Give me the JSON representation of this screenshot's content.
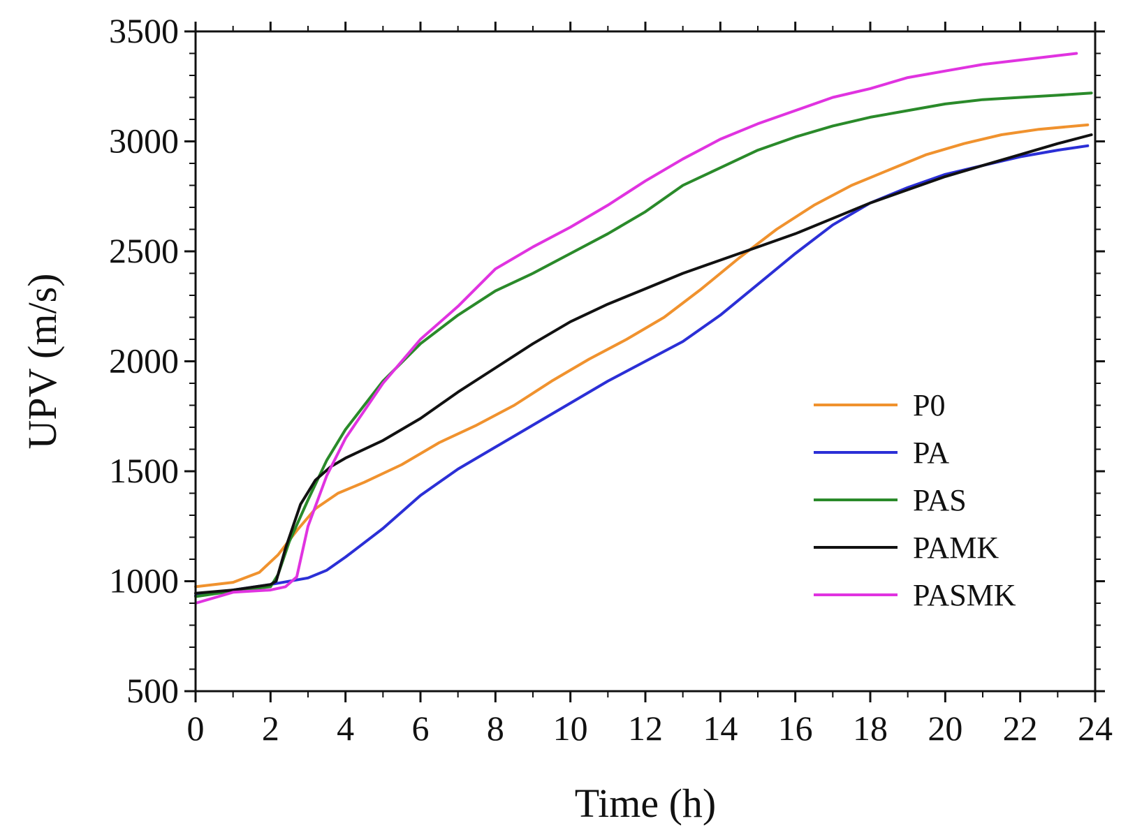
{
  "chart_data": {
    "type": "line",
    "title": "",
    "xlabel": "Time (h)",
    "ylabel": "UPV (m/s)",
    "xlim": [
      0,
      24
    ],
    "ylim": [
      500,
      3500
    ],
    "x_ticks": [
      0,
      2,
      4,
      6,
      8,
      10,
      12,
      14,
      16,
      18,
      20,
      22,
      24
    ],
    "y_ticks": [
      500,
      1000,
      1500,
      2000,
      2500,
      3000,
      3500
    ],
    "x_tick_labels": [
      "0",
      "2",
      "4",
      "6",
      "8",
      "10",
      "12",
      "14",
      "16",
      "18",
      "20",
      "22",
      "24"
    ],
    "y_tick_labels": [
      "500",
      "1000",
      "1500",
      "2000",
      "2500",
      "3000",
      "3500"
    ],
    "grid": false,
    "legend_position": "right",
    "series": [
      {
        "name": "P0",
        "color": "#f0922e",
        "points": [
          [
            0,
            975
          ],
          [
            1,
            995
          ],
          [
            1.7,
            1040
          ],
          [
            2.2,
            1120
          ],
          [
            2.7,
            1230
          ],
          [
            3.2,
            1330
          ],
          [
            3.8,
            1400
          ],
          [
            4.5,
            1450
          ],
          [
            5.5,
            1530
          ],
          [
            6.5,
            1630
          ],
          [
            7.5,
            1710
          ],
          [
            8.5,
            1800
          ],
          [
            9.5,
            1910
          ],
          [
            10.5,
            2010
          ],
          [
            11.5,
            2100
          ],
          [
            12.5,
            2200
          ],
          [
            13.5,
            2330
          ],
          [
            14.5,
            2470
          ],
          [
            15.5,
            2600
          ],
          [
            16.5,
            2710
          ],
          [
            17.5,
            2800
          ],
          [
            18.5,
            2870
          ],
          [
            19.5,
            2940
          ],
          [
            20.5,
            2990
          ],
          [
            21.5,
            3030
          ],
          [
            22.5,
            3055
          ],
          [
            23.8,
            3075
          ]
        ]
      },
      {
        "name": "PA",
        "color": "#2b2fd6",
        "points": [
          [
            0,
            935
          ],
          [
            1,
            960
          ],
          [
            2,
            985
          ],
          [
            3,
            1015
          ],
          [
            3.5,
            1050
          ],
          [
            4,
            1110
          ],
          [
            5,
            1240
          ],
          [
            6,
            1390
          ],
          [
            7,
            1510
          ],
          [
            8,
            1610
          ],
          [
            9,
            1710
          ],
          [
            10,
            1810
          ],
          [
            11,
            1910
          ],
          [
            12,
            2000
          ],
          [
            13,
            2090
          ],
          [
            14,
            2210
          ],
          [
            15,
            2350
          ],
          [
            16,
            2490
          ],
          [
            17,
            2620
          ],
          [
            18,
            2720
          ],
          [
            19,
            2790
          ],
          [
            20,
            2850
          ],
          [
            21,
            2890
          ],
          [
            22,
            2930
          ],
          [
            23,
            2960
          ],
          [
            23.8,
            2980
          ]
        ]
      },
      {
        "name": "PAS",
        "color": "#2a8a2a",
        "points": [
          [
            0,
            930
          ],
          [
            1,
            955
          ],
          [
            2,
            975
          ],
          [
            2.2,
            1030
          ],
          [
            2.5,
            1180
          ],
          [
            3,
            1370
          ],
          [
            3.5,
            1550
          ],
          [
            4,
            1690
          ],
          [
            5,
            1910
          ],
          [
            6,
            2080
          ],
          [
            7,
            2210
          ],
          [
            8,
            2320
          ],
          [
            9,
            2400
          ],
          [
            10,
            2490
          ],
          [
            11,
            2580
          ],
          [
            12,
            2680
          ],
          [
            13,
            2800
          ],
          [
            14,
            2880
          ],
          [
            15,
            2960
          ],
          [
            16,
            3020
          ],
          [
            17,
            3070
          ],
          [
            18,
            3110
          ],
          [
            19,
            3140
          ],
          [
            20,
            3170
          ],
          [
            21,
            3190
          ],
          [
            22,
            3200
          ],
          [
            23,
            3210
          ],
          [
            23.9,
            3220
          ]
        ]
      },
      {
        "name": "PAMK",
        "color": "#111111",
        "points": [
          [
            0,
            945
          ],
          [
            1,
            960
          ],
          [
            2,
            985
          ],
          [
            2.15,
            1000
          ],
          [
            2.4,
            1150
          ],
          [
            2.8,
            1350
          ],
          [
            3.2,
            1460
          ],
          [
            3.6,
            1520
          ],
          [
            4,
            1560
          ],
          [
            5,
            1640
          ],
          [
            6,
            1740
          ],
          [
            7,
            1860
          ],
          [
            8,
            1970
          ],
          [
            9,
            2080
          ],
          [
            10,
            2180
          ],
          [
            11,
            2260
          ],
          [
            12,
            2330
          ],
          [
            13,
            2400
          ],
          [
            14,
            2460
          ],
          [
            15,
            2520
          ],
          [
            16,
            2580
          ],
          [
            17,
            2650
          ],
          [
            18,
            2720
          ],
          [
            19,
            2780
          ],
          [
            20,
            2840
          ],
          [
            21,
            2890
          ],
          [
            22,
            2940
          ],
          [
            23,
            2990
          ],
          [
            23.9,
            3030
          ]
        ]
      },
      {
        "name": "PASMK",
        "color": "#e033e0",
        "points": [
          [
            0,
            900
          ],
          [
            1,
            950
          ],
          [
            2,
            960
          ],
          [
            2.4,
            975
          ],
          [
            2.7,
            1020
          ],
          [
            3,
            1250
          ],
          [
            3.5,
            1480
          ],
          [
            4,
            1650
          ],
          [
            5,
            1900
          ],
          [
            6,
            2100
          ],
          [
            7,
            2250
          ],
          [
            8,
            2420
          ],
          [
            9,
            2520
          ],
          [
            10,
            2610
          ],
          [
            11,
            2710
          ],
          [
            12,
            2820
          ],
          [
            13,
            2920
          ],
          [
            14,
            3010
          ],
          [
            15,
            3080
          ],
          [
            16,
            3140
          ],
          [
            17,
            3200
          ],
          [
            18,
            3240
          ],
          [
            19,
            3290
          ],
          [
            20,
            3320
          ],
          [
            21,
            3350
          ],
          [
            22,
            3370
          ],
          [
            23,
            3390
          ],
          [
            23.5,
            3400
          ]
        ]
      }
    ]
  }
}
